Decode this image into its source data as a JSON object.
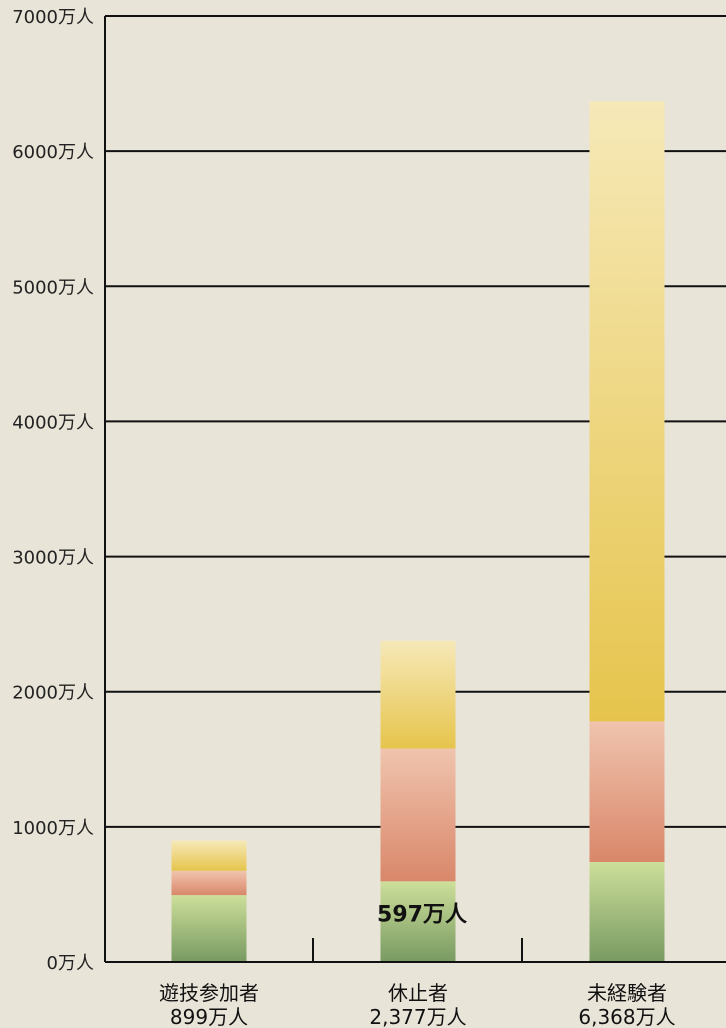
{
  "chart_data": {
    "type": "bar",
    "stacked": true,
    "unit": "万人",
    "ylim": [
      0,
      7000
    ],
    "yticks": [
      0,
      1000,
      2000,
      3000,
      4000,
      5000,
      6000,
      7000
    ],
    "ytick_labels": [
      "0万人",
      "1000万人",
      "2000万人",
      "3000万人",
      "4000万人",
      "5000万人",
      "6000万人",
      "7000万人"
    ],
    "grid": true,
    "categories": [
      {
        "label": "遊技参加者",
        "total_label": "899万人",
        "total": 899
      },
      {
        "label": "休止者",
        "total_label": "2,377万人",
        "total": 2377
      },
      {
        "label": "未経験者",
        "total_label": "6,368万人",
        "total": 6368
      }
    ],
    "series": [
      {
        "color_top": "#cddf9a",
        "color_bottom": "#789a62",
        "values": [
          495,
          597,
          740
        ]
      },
      {
        "color_top": "#f0c4ae",
        "color_bottom": "#d9876a",
        "values": [
          180,
          983,
          1040
        ]
      },
      {
        "color_top": "#f6e9b8",
        "color_bottom": "#e6c44c",
        "values": [
          224,
          797,
          4588
        ]
      }
    ],
    "annotations": [
      {
        "category": 1,
        "series": 0,
        "text": "597万人"
      }
    ]
  }
}
